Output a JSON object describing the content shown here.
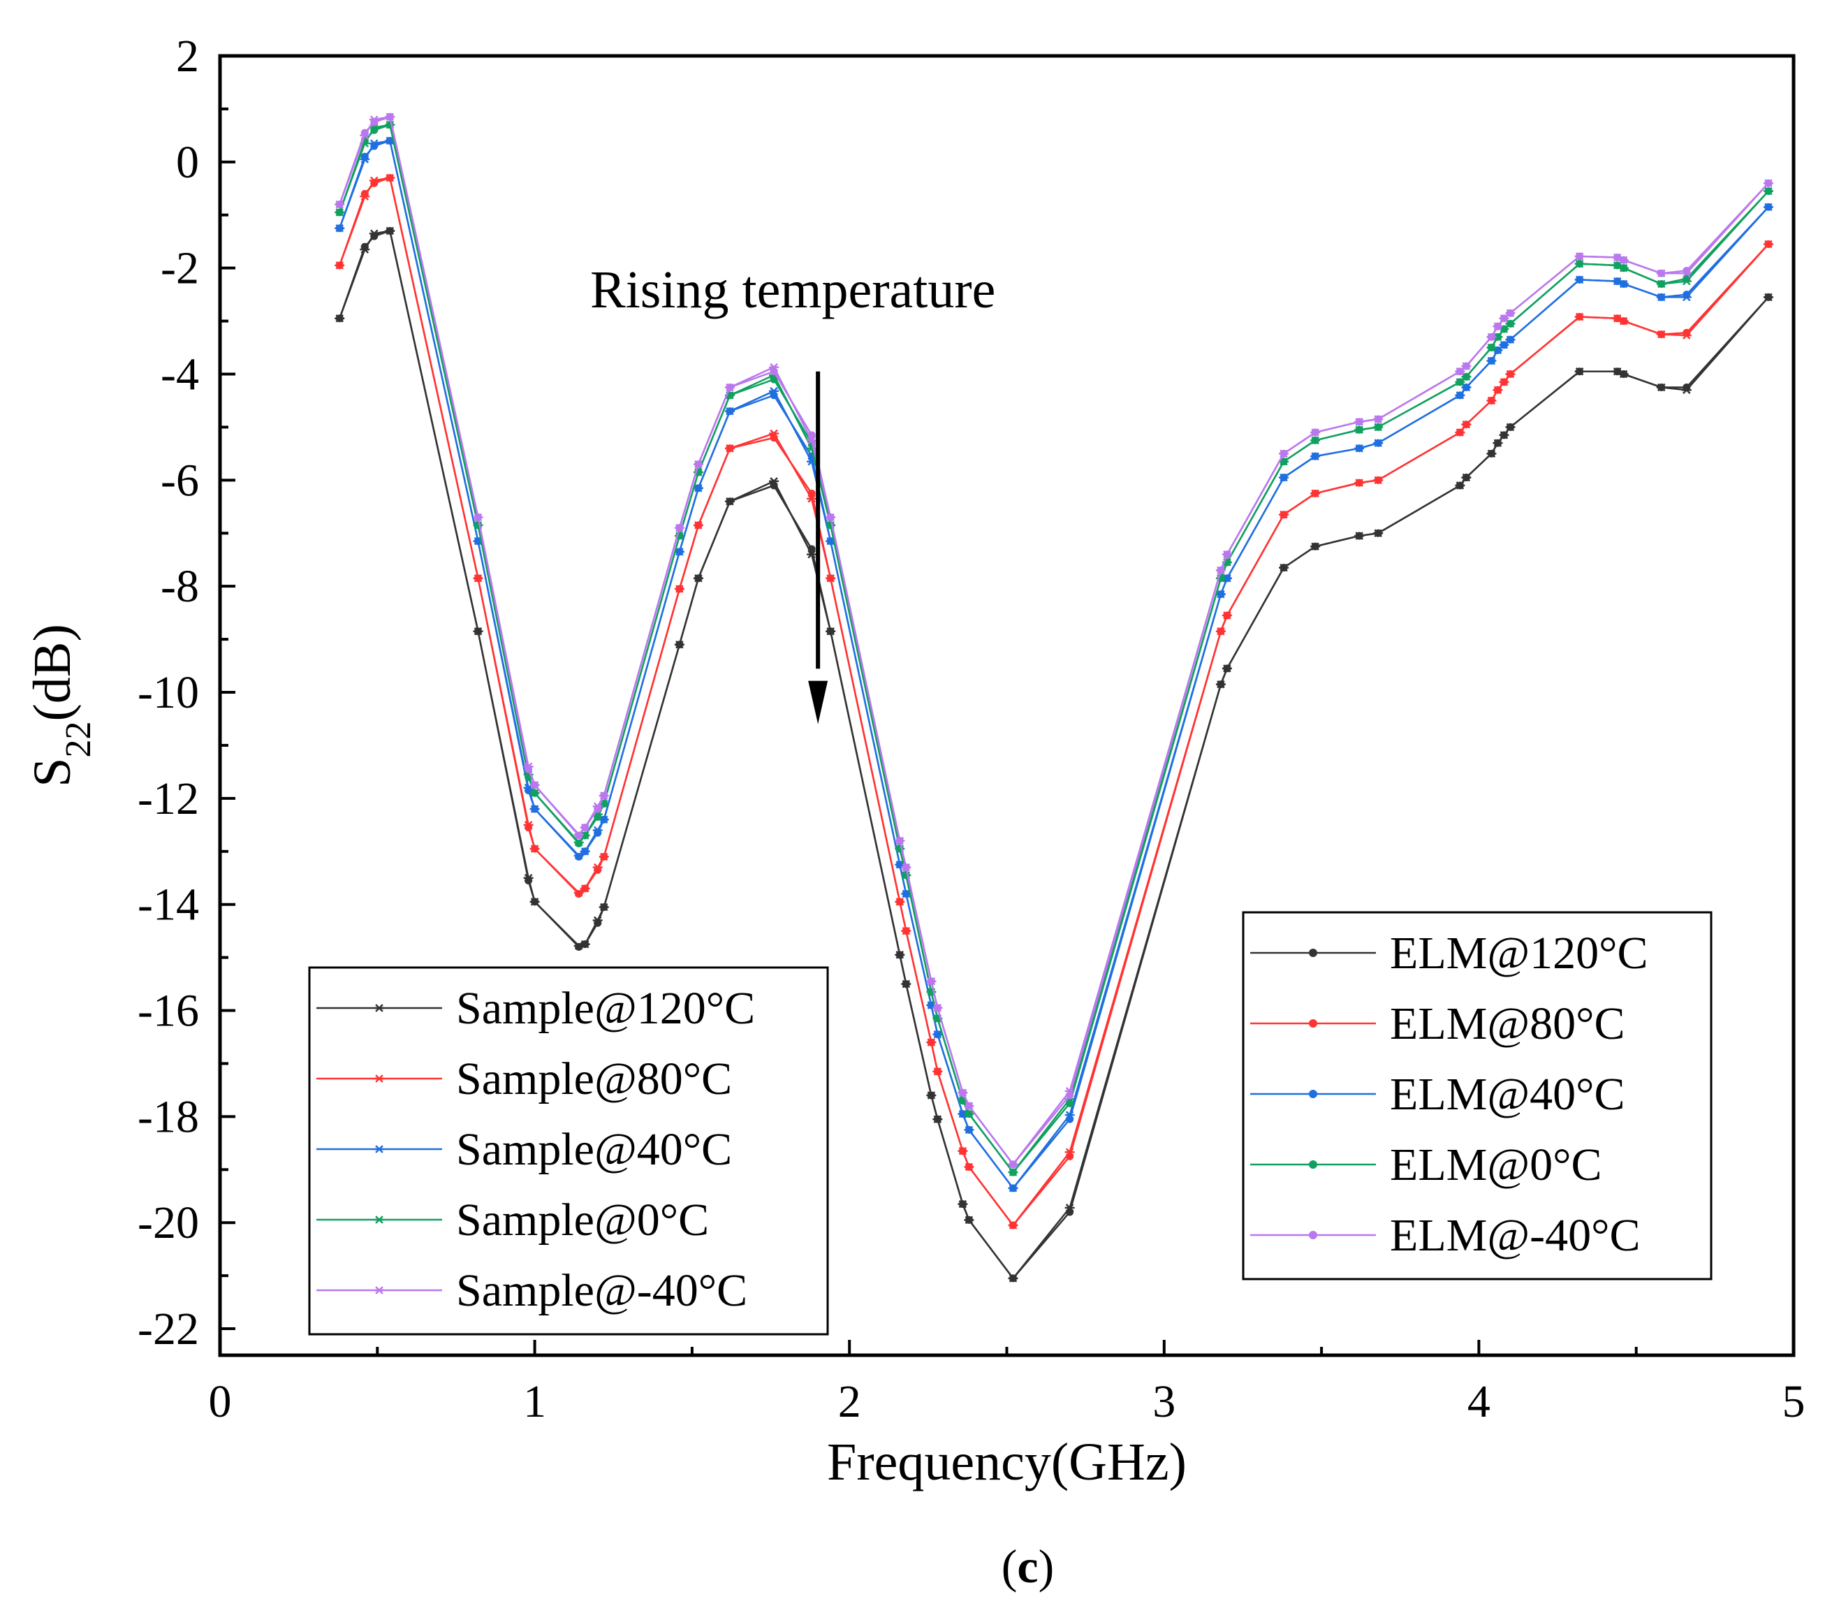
{
  "chart_data": {
    "type": "line",
    "title": "",
    "xlabel": "Frequency(GHz)",
    "ylabel_main": "S",
    "ylabel_sub": "22",
    "ylabel_tail": "(dB)",
    "xlim": [
      0,
      5
    ],
    "ylim": [
      -22.5,
      2
    ],
    "xticks": [
      0,
      1,
      2,
      3,
      4,
      5
    ],
    "xtick_labels": [
      "0",
      "1",
      "2",
      "3",
      "4",
      "5"
    ],
    "yticks": [
      2,
      0,
      -2,
      -4,
      -6,
      -8,
      -10,
      -12,
      -14,
      -16,
      -18,
      -20,
      -22
    ],
    "ytick_labels": [
      "2",
      "0",
      "-2",
      "-4",
      "-6",
      "-8",
      "-10",
      "-12",
      "-14",
      "-16",
      "-18",
      "-20",
      "-22"
    ],
    "grid": false,
    "annotation": "Rising temperature",
    "caption_open": "(",
    "caption_letter": "c",
    "caption_close": ")",
    "x": [
      0.38,
      0.46,
      0.49,
      0.54,
      0.82,
      0.98,
      1.0,
      1.14,
      1.16,
      1.2,
      1.22,
      1.46,
      1.52,
      1.62,
      1.76,
      1.88,
      1.94,
      2.16,
      2.18,
      2.26,
      2.28,
      2.36,
      2.38,
      2.52,
      2.7,
      3.18,
      3.2,
      3.38,
      3.48,
      3.62,
      3.68,
      3.94,
      3.96,
      4.04,
      4.06,
      4.08,
      4.1,
      4.32,
      4.44,
      4.46,
      4.58,
      4.66,
      4.92
    ],
    "sample_offsets": [
      0.0,
      -0.05,
      0.05,
      0.0,
      0.0,
      0.05,
      0.0,
      0.02,
      0.0,
      0.05,
      0.0,
      0.0,
      0.0,
      0.0,
      0.08,
      -0.1,
      0.0,
      0.0,
      0.0,
      0.0,
      0.0,
      0.0,
      0.0,
      0.0,
      0.08,
      0.0,
      0.0,
      0.0,
      0.0,
      0.0,
      0.0,
      0.0,
      0.0,
      0.0,
      0.0,
      0.0,
      0.0,
      0.0,
      0.0,
      0.0,
      0.0,
      -0.05,
      0.0
    ],
    "series": [
      {
        "name": "120°C",
        "color": "#333333",
        "values": [
          -2.95,
          -1.6,
          -1.4,
          -1.3,
          -8.85,
          -13.55,
          -13.95,
          -14.8,
          -14.75,
          -14.35,
          -14.05,
          -9.1,
          -7.85,
          -6.4,
          -6.1,
          -7.3,
          -8.85,
          -14.95,
          -15.5,
          -17.6,
          -18.05,
          -19.65,
          -19.95,
          -21.05,
          -19.8,
          -9.85,
          -9.55,
          -7.65,
          -7.25,
          -7.05,
          -7.0,
          -6.1,
          -5.95,
          -5.5,
          -5.3,
          -5.15,
          -5.0,
          -3.95,
          -3.95,
          -4.0,
          -4.25,
          -4.25,
          -2.55
        ]
      },
      {
        "name": "80°C",
        "color": "#ff3333",
        "values": [
          -1.95,
          -0.6,
          -0.4,
          -0.3,
          -7.85,
          -12.55,
          -12.95,
          -13.8,
          -13.7,
          -13.35,
          -13.1,
          -8.05,
          -6.85,
          -5.4,
          -5.2,
          -6.25,
          -7.85,
          -13.95,
          -14.5,
          -16.6,
          -17.15,
          -18.65,
          -18.95,
          -20.05,
          -18.75,
          -8.85,
          -8.55,
          -6.65,
          -6.25,
          -6.05,
          -6.0,
          -5.1,
          -4.95,
          -4.5,
          -4.3,
          -4.15,
          -4.0,
          -2.92,
          -2.95,
          -3.0,
          -3.25,
          -3.22,
          -1.55
        ]
      },
      {
        "name": "40°C",
        "color": "#1f6fe0",
        "values": [
          -1.25,
          0.1,
          0.3,
          0.4,
          -7.15,
          -11.85,
          -12.2,
          -13.1,
          -13.0,
          -12.65,
          -12.4,
          -7.35,
          -6.15,
          -4.7,
          -4.4,
          -5.55,
          -7.15,
          -13.25,
          -13.8,
          -15.9,
          -16.45,
          -17.95,
          -18.25,
          -19.35,
          -18.05,
          -8.15,
          -7.85,
          -5.95,
          -5.55,
          -5.4,
          -5.3,
          -4.4,
          -4.25,
          -3.75,
          -3.55,
          -3.45,
          -3.35,
          -2.22,
          -2.25,
          -2.3,
          -2.55,
          -2.5,
          -0.85
        ]
      },
      {
        "name": "0°C",
        "color": "#10a060",
        "values": [
          -0.95,
          0.4,
          0.6,
          0.7,
          -6.85,
          -11.6,
          -11.9,
          -12.85,
          -12.7,
          -12.35,
          -12.1,
          -7.05,
          -5.85,
          -4.4,
          -4.1,
          -5.3,
          -6.85,
          -12.95,
          -13.45,
          -15.65,
          -16.15,
          -17.7,
          -17.95,
          -19.05,
          -17.75,
          -7.85,
          -7.55,
          -5.65,
          -5.25,
          -5.05,
          -5.0,
          -4.15,
          -4.05,
          -3.5,
          -3.3,
          -3.15,
          -3.05,
          -1.92,
          -1.95,
          -2.0,
          -2.3,
          -2.2,
          -0.55
        ]
      },
      {
        "name": "-40°C",
        "color": "#bb77ee",
        "values": [
          -0.8,
          0.55,
          0.75,
          0.85,
          -6.7,
          -11.45,
          -11.75,
          -12.7,
          -12.55,
          -12.2,
          -11.95,
          -6.9,
          -5.7,
          -4.25,
          -3.95,
          -5.15,
          -6.7,
          -12.8,
          -13.3,
          -15.45,
          -15.95,
          -17.55,
          -17.8,
          -18.9,
          -17.6,
          -7.7,
          -7.4,
          -5.5,
          -5.1,
          -4.9,
          -4.85,
          -3.95,
          -3.85,
          -3.3,
          -3.1,
          -2.95,
          -2.85,
          -1.78,
          -1.8,
          -1.85,
          -2.1,
          -2.05,
          -0.4
        ]
      }
    ],
    "legend_sample": [
      {
        "label": "Sample@120°C",
        "color": "#333333"
      },
      {
        "label": "Sample@80°C",
        "color": "#ff3333"
      },
      {
        "label": "Sample@40°C",
        "color": "#1f6fe0"
      },
      {
        "label": "Sample@0°C",
        "color": "#10a060"
      },
      {
        "label": "Sample@-40°C",
        "color": "#bb77ee"
      }
    ],
    "legend_elm": [
      {
        "label": "ELM@120°C",
        "color": "#333333"
      },
      {
        "label": "ELM@80°C",
        "color": "#ff3333"
      },
      {
        "label": "ELM@40°C",
        "color": "#1f6fe0"
      },
      {
        "label": "ELM@0°C",
        "color": "#10a060"
      },
      {
        "label": "ELM@-40°C",
        "color": "#bb77ee"
      }
    ],
    "legend_sample_position": "bottom-left",
    "legend_elm_position": "bottom-right"
  }
}
